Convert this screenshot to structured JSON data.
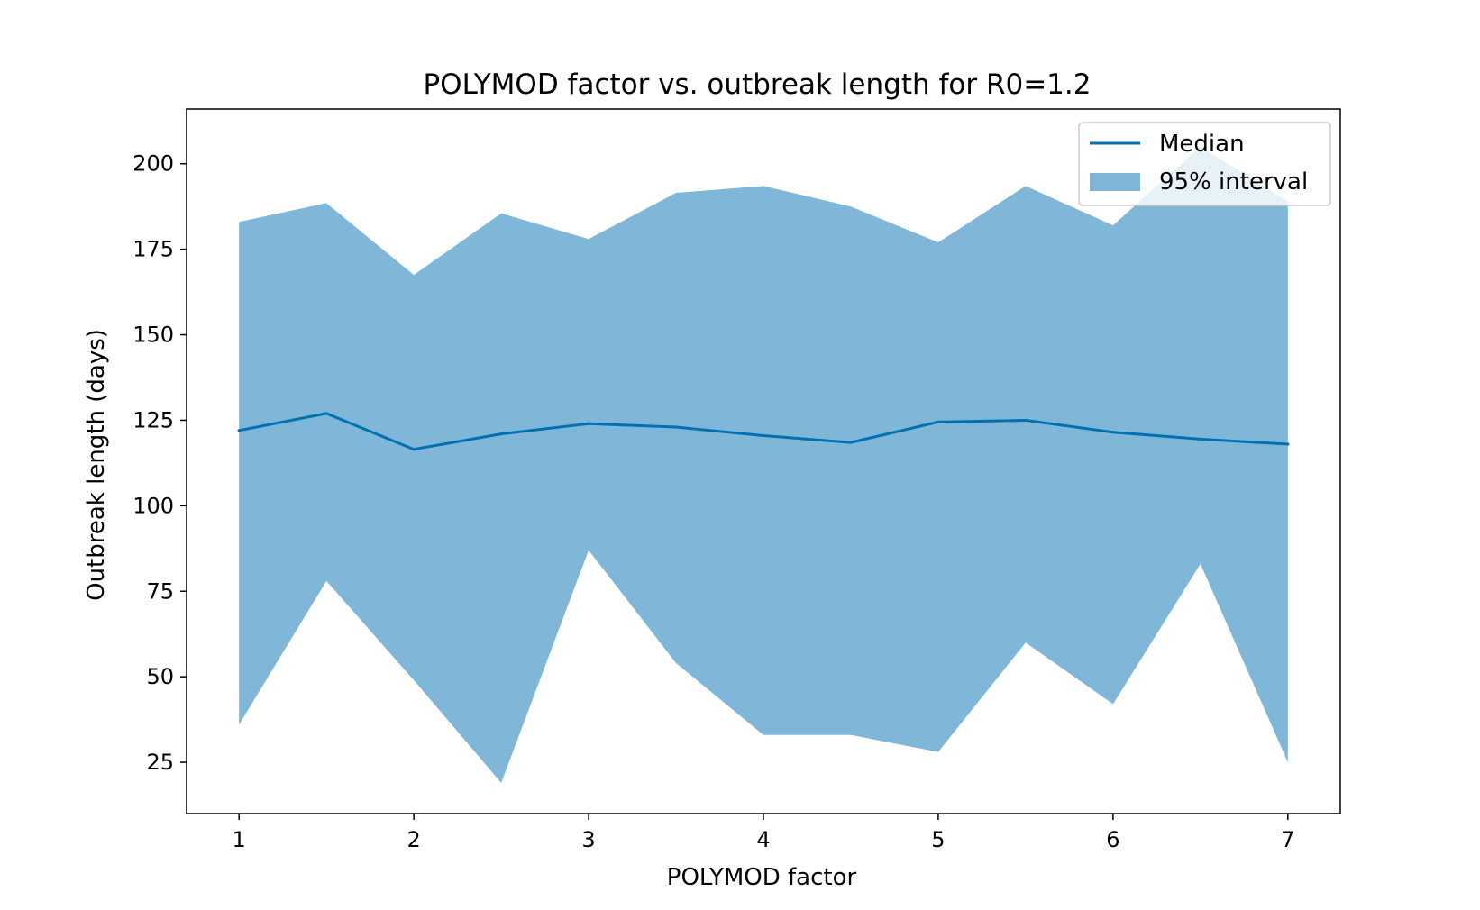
{
  "chart_data": {
    "type": "area",
    "title": "POLYMOD factor vs. outbreak length for R0=1.2",
    "xlabel": "POLYMOD factor",
    "ylabel": "Outbreak length (days)",
    "xlim": [
      0.7,
      7.3
    ],
    "ylim": [
      10,
      216
    ],
    "xticks": [
      1,
      2,
      3,
      4,
      5,
      6,
      7
    ],
    "yticks": [
      25,
      50,
      75,
      100,
      125,
      150,
      175,
      200
    ],
    "grid": false,
    "legend_position": "upper right",
    "x": [
      1,
      1.5,
      2,
      2.5,
      3,
      3.5,
      4,
      4.5,
      5,
      5.5,
      6,
      6.5,
      7
    ],
    "series": [
      {
        "name": "Median",
        "kind": "line",
        "color": "#0072b2",
        "values": [
          122,
          127,
          116.5,
          121,
          124,
          123,
          120.5,
          118.5,
          124.5,
          125,
          121.5,
          119.5,
          118
        ]
      },
      {
        "name": "95% interval",
        "kind": "band",
        "color": "#80b7d9",
        "lower": [
          36,
          78,
          49,
          19,
          87,
          54,
          33,
          33,
          28,
          60,
          42,
          83,
          25
        ],
        "upper": [
          183,
          188.5,
          167.5,
          185.5,
          178,
          191.5,
          193.5,
          187.5,
          177,
          193.5,
          182,
          205,
          189
        ]
      }
    ]
  }
}
